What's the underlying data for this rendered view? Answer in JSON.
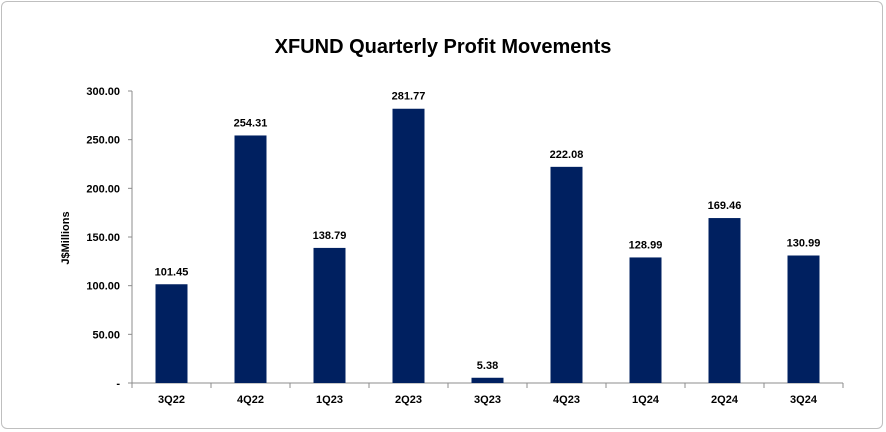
{
  "chart_data": {
    "type": "bar",
    "title": "XFUND Quarterly Profit Movements",
    "xlabel": "",
    "ylabel": "J$Millions",
    "categories": [
      "3Q22",
      "4Q22",
      "1Q23",
      "2Q23",
      "3Q23",
      "4Q23",
      "1Q24",
      "2Q24",
      "3Q24"
    ],
    "values": [
      101.45,
      254.31,
      138.79,
      281.77,
      5.38,
      222.08,
      128.99,
      169.46,
      130.99
    ],
    "value_labels": [
      "101.45",
      "254.31",
      "138.79",
      "281.77",
      "5.38",
      "222.08",
      "128.99",
      "169.46",
      "130.99"
    ],
    "ylim": [
      0,
      300
    ],
    "yticks": [
      0,
      50,
      100,
      150,
      200,
      250,
      300
    ],
    "ytick_labels": [
      "-",
      "50.00",
      "100.00",
      "150.00",
      "200.00",
      "250.00",
      "300.00"
    ],
    "grid": false,
    "legend": "none",
    "bar_color": "#002060"
  }
}
